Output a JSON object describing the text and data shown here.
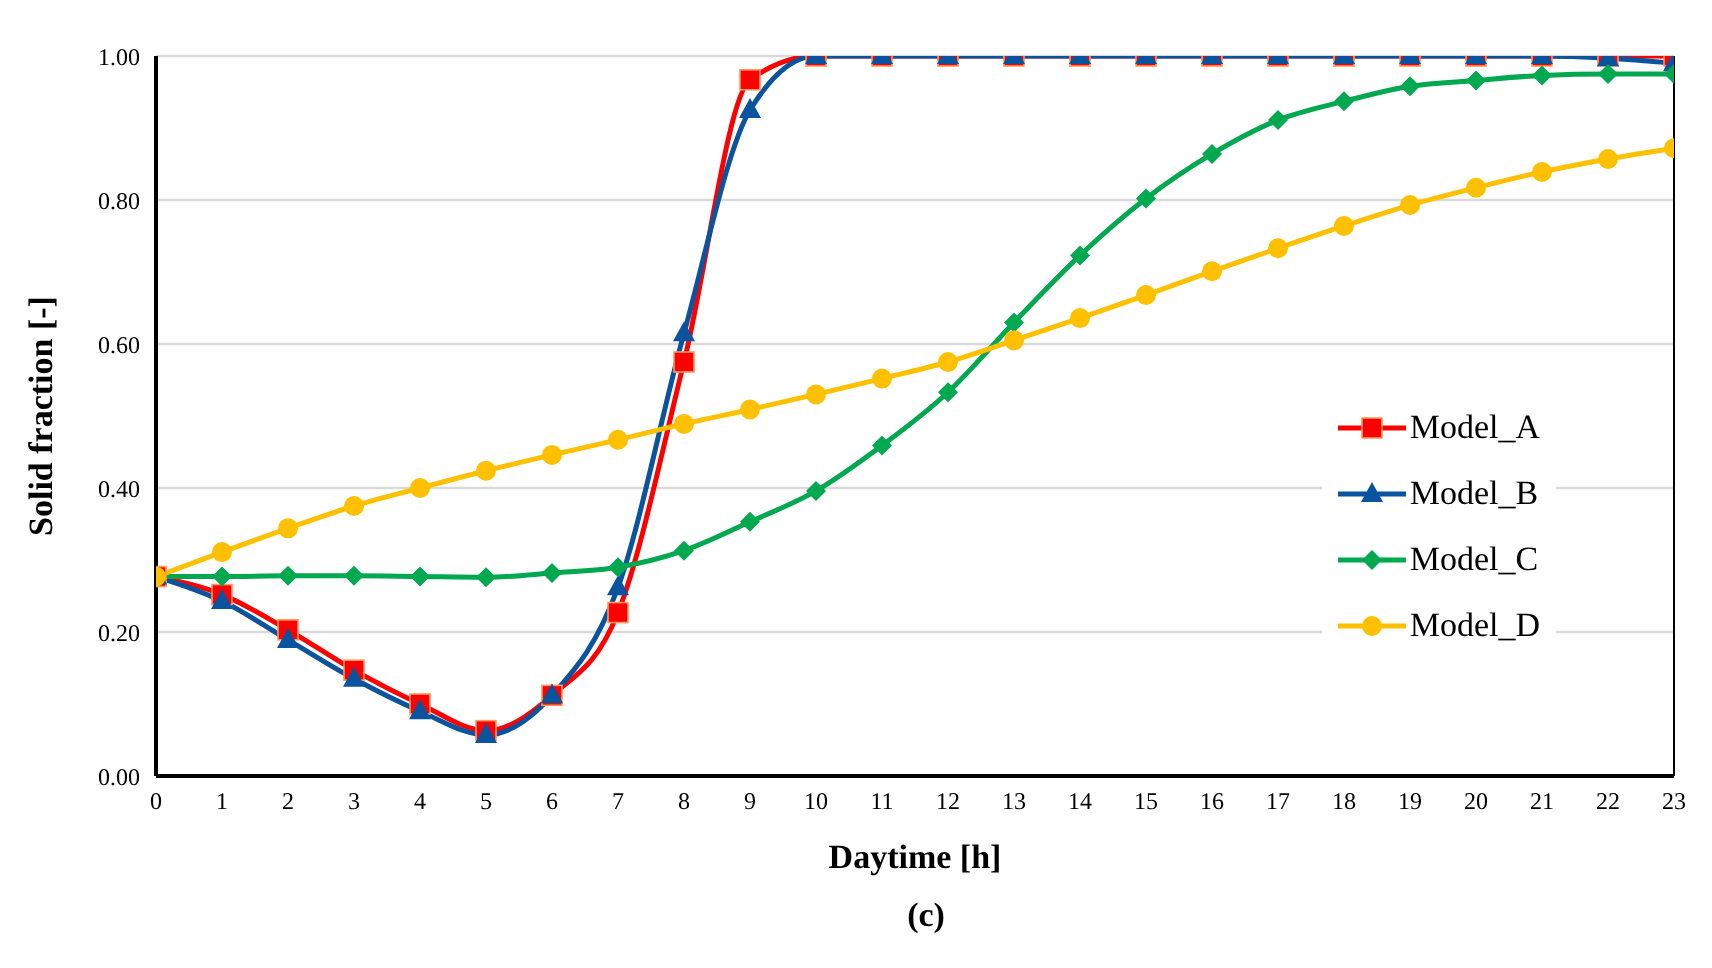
{
  "chart_data": {
    "type": "line",
    "xlabel": "Daytime [h]",
    "ylabel": "Solid fraction [-]",
    "annotations": [
      "(c)"
    ],
    "x": [
      0,
      1,
      2,
      3,
      4,
      5,
      6,
      7,
      8,
      9,
      10,
      11,
      12,
      13,
      14,
      15,
      16,
      17,
      18,
      19,
      20,
      21,
      22,
      23
    ],
    "xlim": [
      0,
      23
    ],
    "xticks": [
      0,
      1,
      2,
      3,
      4,
      5,
      6,
      7,
      8,
      9,
      10,
      11,
      12,
      13,
      14,
      15,
      16,
      17,
      18,
      19,
      20,
      21,
      22,
      23
    ],
    "ylim": [
      0,
      1
    ],
    "yticks": [
      {
        "value": 0,
        "label": "0.00"
      },
      {
        "value": 0.2,
        "label": "0.20"
      },
      {
        "value": 0.4,
        "label": "0.40"
      },
      {
        "value": 0.6,
        "label": "0.60"
      },
      {
        "value": 0.8,
        "label": "0.80"
      },
      {
        "value": 1,
        "label": "1.00"
      }
    ],
    "grid": "y",
    "legend": "right",
    "series": [
      {
        "name": "Model_A",
        "color": "#ff0000",
        "marker": "square",
        "values": [
          0.277,
          0.252,
          0.203,
          0.147,
          0.1,
          0.063,
          0.112,
          0.227,
          0.575,
          0.967,
          1,
          1,
          1,
          1,
          1,
          1,
          1,
          1,
          1,
          1,
          1,
          1,
          1,
          1
        ]
      },
      {
        "name": "Model_B",
        "color": "#0a539e",
        "marker": "triangle",
        "values": [
          0.277,
          0.243,
          0.189,
          0.135,
          0.09,
          0.057,
          0.112,
          0.262,
          0.615,
          0.925,
          1,
          1,
          1,
          1,
          1,
          1,
          1,
          1,
          1,
          1,
          1,
          1,
          0.997,
          0.99
        ]
      },
      {
        "name": "Model_C",
        "color": "#00a84f",
        "marker": "diamond",
        "values": [
          0.277,
          0.277,
          0.278,
          0.278,
          0.277,
          0.276,
          0.282,
          0.29,
          0.313,
          0.353,
          0.396,
          0.459,
          0.533,
          0.63,
          0.723,
          0.802,
          0.864,
          0.911,
          0.937,
          0.958,
          0.966,
          0.973,
          0.975,
          0.975
        ]
      },
      {
        "name": "Model_D",
        "color": "#ffc000",
        "marker": "circle",
        "values": [
          0.277,
          0.311,
          0.344,
          0.375,
          0.4,
          0.424,
          0.446,
          0.467,
          0.489,
          0.509,
          0.53,
          0.552,
          0.575,
          0.605,
          0.636,
          0.668,
          0.701,
          0.733,
          0.764,
          0.793,
          0.817,
          0.839,
          0.857,
          0.872
        ]
      }
    ]
  }
}
